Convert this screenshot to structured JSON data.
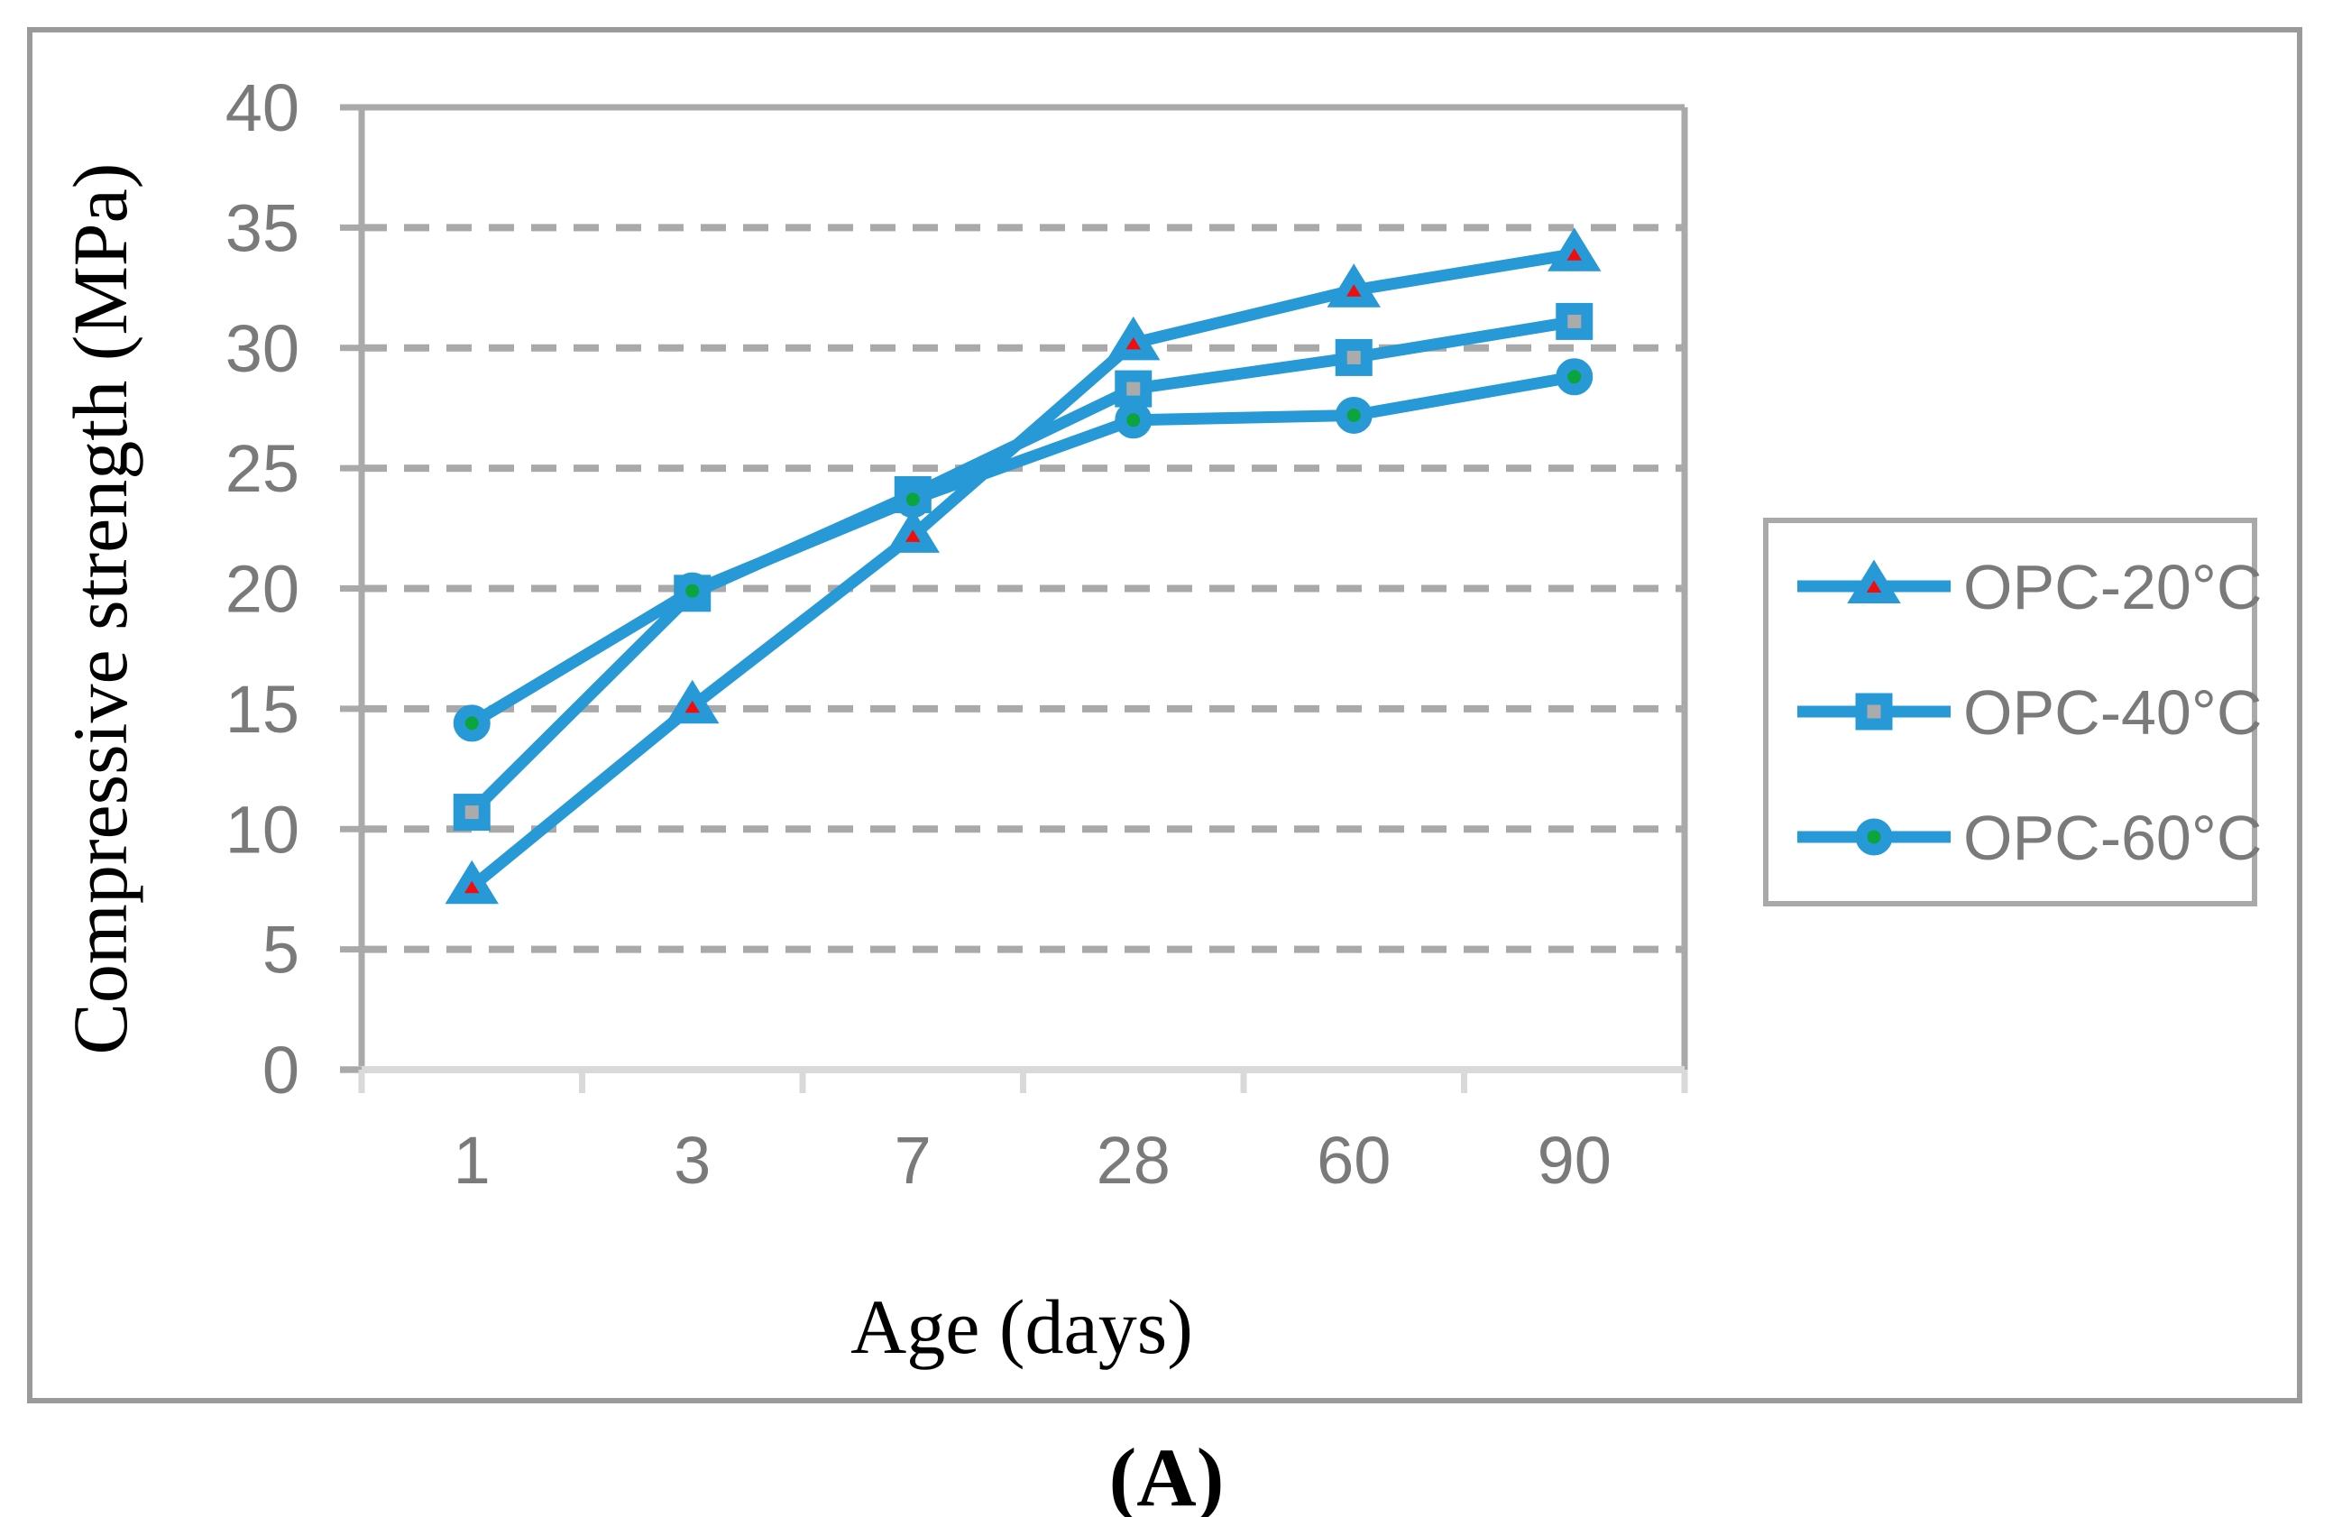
{
  "figure": {
    "caption": "(A)"
  },
  "chart_data": {
    "type": "line",
    "title": "",
    "categories": [
      "1",
      "3",
      "7",
      "28",
      "60",
      "90"
    ],
    "xlabel": "Age (days)",
    "ylabel": "Compressive strength (MPa)",
    "ylim": [
      0,
      40
    ],
    "ytick_step": 5,
    "yticks": [
      0,
      5,
      10,
      15,
      20,
      25,
      30,
      35,
      40
    ],
    "grid": "horizontal-dashed",
    "legend_position": "right",
    "series": [
      {
        "name": "OPC-20°C",
        "marker": "triangle",
        "marker_fill": "#f20d0d",
        "values": [
          7.6,
          15.1,
          22.2,
          30.2,
          32.4,
          33.9
        ]
      },
      {
        "name": "OPC-40°C",
        "marker": "square",
        "marker_fill": "#ababab",
        "values": [
          10.7,
          19.8,
          23.9,
          28.3,
          29.6,
          31.1
        ]
      },
      {
        "name": "OPC-60°C",
        "marker": "circle",
        "marker_fill": "#0ca43c",
        "values": [
          14.4,
          19.9,
          23.7,
          27.0,
          27.2,
          28.8
        ]
      }
    ],
    "line_color": "#2699d6"
  },
  "colors": {
    "line_blue": "#2699d6",
    "marker_red": "#f20d0d",
    "marker_gray": "#ababab",
    "marker_green": "#0ca43c",
    "gridline": "#a9a9a9",
    "axis_light": "#d9d9d9",
    "tick_label": "#7a7a7a",
    "legend_text": "#7a7a7a",
    "legend_border": "#a9a9a9",
    "figure_border": "#9a9a9a",
    "title_text": "#000000"
  }
}
